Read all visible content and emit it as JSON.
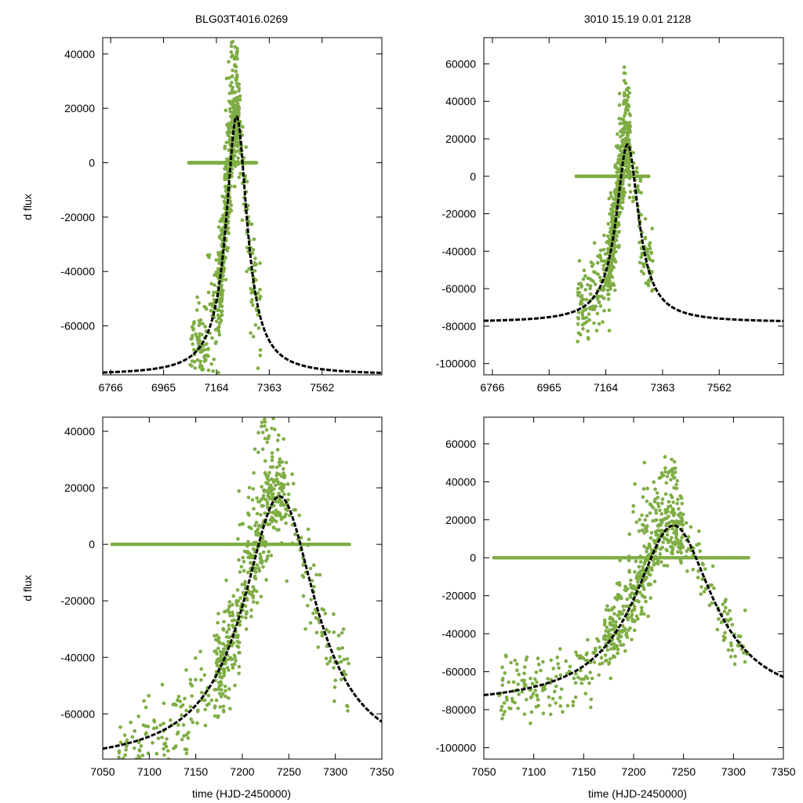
{
  "figure": {
    "title_left": "BLG03T4016.0269",
    "title_right": "3010  15.19  0.01  2128",
    "ylabel": "d flux",
    "xlabel": "time (HJD-2450000)",
    "point_color": "#7fad45",
    "model_color": "#000000"
  },
  "chart_data": [
    {
      "id": "top-left",
      "type": "scatter",
      "xlim": [
        6736,
        7787
      ],
      "ylim": [
        -78000,
        46000
      ],
      "xticks": [
        6766,
        6965,
        7164,
        7363,
        7562
      ],
      "yticks": [
        40000,
        20000,
        0,
        -20000,
        -40000,
        -60000
      ],
      "xlabel": "",
      "ylabel": "d flux",
      "title": "BLG03T4016.0269",
      "model": {
        "t0": 7240,
        "tE": 48,
        "base": -78000,
        "amp": 95000
      },
      "series": [
        {
          "name": "observations",
          "kind": "cluster",
          "t_range": [
            7065,
            7330
          ],
          "scatter": 9000
        },
        {
          "name": "zero-flux",
          "kind": "flat",
          "t_range": [
            7060,
            7315
          ],
          "value": 0
        }
      ]
    },
    {
      "id": "top-right",
      "type": "scatter",
      "xlim": [
        6736,
        7787
      ],
      "ylim": [
        -106000,
        74000
      ],
      "xticks": [
        6766,
        6965,
        7164,
        7363,
        7562
      ],
      "yticks": [
        60000,
        40000,
        20000,
        0,
        -20000,
        -40000,
        -60000,
        -80000,
        -100000
      ],
      "xlabel": "",
      "ylabel": "",
      "title": "3010  15.19  0.01  2128",
      "model": {
        "t0": 7240,
        "tE": 48,
        "base": -78000,
        "amp": 95000
      },
      "series": [
        {
          "name": "observations",
          "kind": "cluster",
          "t_range": [
            7065,
            7330
          ],
          "scatter": 11000
        },
        {
          "name": "zero-flux",
          "kind": "flat",
          "t_range": [
            7060,
            7315
          ],
          "value": 0
        }
      ]
    },
    {
      "id": "bottom-left",
      "type": "scatter",
      "xlim": [
        7050,
        7350
      ],
      "ylim": [
        -76000,
        45000
      ],
      "xticks": [
        7050,
        7100,
        7150,
        7200,
        7250,
        7300,
        7350
      ],
      "yticks": [
        40000,
        20000,
        0,
        -20000,
        -40000,
        -60000
      ],
      "xlabel": "time (HJD-2450000)",
      "ylabel": "d flux",
      "title": "",
      "model": {
        "t0": 7240,
        "tE": 48,
        "base": -78000,
        "amp": 95000
      },
      "series": [
        {
          "name": "observations",
          "kind": "cluster",
          "t_range": [
            7065,
            7315
          ],
          "scatter": 8000
        },
        {
          "name": "zero-flux",
          "kind": "flat",
          "t_range": [
            7060,
            7315
          ],
          "value": 0
        }
      ]
    },
    {
      "id": "bottom-right",
      "type": "scatter",
      "xlim": [
        7050,
        7350
      ],
      "ylim": [
        -106000,
        74000
      ],
      "xticks": [
        7050,
        7100,
        7150,
        7200,
        7250,
        7300,
        7350
      ],
      "yticks": [
        60000,
        40000,
        20000,
        0,
        -20000,
        -40000,
        -60000,
        -80000,
        -100000
      ],
      "xlabel": "time (HJD-2450000)",
      "ylabel": "",
      "title": "",
      "model": {
        "t0": 7240,
        "tE": 48,
        "base": -78000,
        "amp": 95000
      },
      "series": [
        {
          "name": "observations",
          "kind": "cluster",
          "t_range": [
            7065,
            7315
          ],
          "scatter": 9000
        },
        {
          "name": "zero-flux",
          "kind": "flat",
          "t_range": [
            7060,
            7315
          ],
          "value": 0
        }
      ]
    }
  ]
}
